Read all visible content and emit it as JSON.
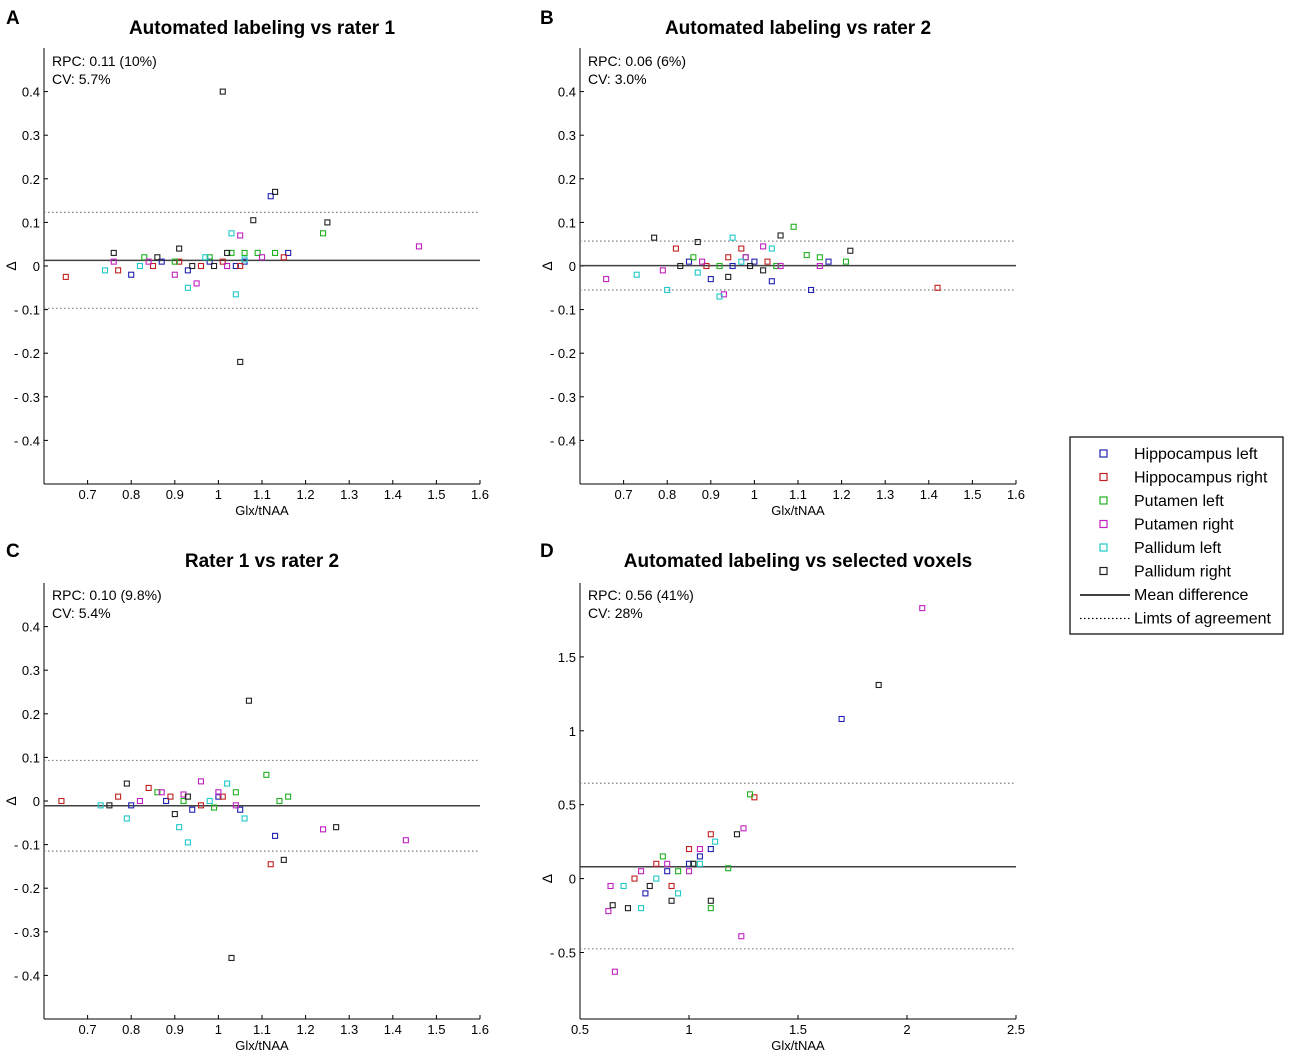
{
  "colors": {
    "hippocampus_left": "#2020b0",
    "hippocampus_right": "#c02020",
    "putamen_left": "#20b020",
    "putamen_right": "#c020c0",
    "pallidum_left": "#20c8c8",
    "pallidum_right": "#202020",
    "mean_line": "#404040",
    "limit_line": "#808080"
  },
  "legend": {
    "items": [
      {
        "label": "Hippocampus left",
        "group": "hippocampus_left",
        "kind": "marker"
      },
      {
        "label": "Hippocampus right",
        "group": "hippocampus_right",
        "kind": "marker"
      },
      {
        "label": "Putamen left",
        "group": "putamen_left",
        "kind": "marker"
      },
      {
        "label": "Putamen right",
        "group": "putamen_right",
        "kind": "marker"
      },
      {
        "label": "Pallidum left",
        "group": "pallidum_left",
        "kind": "marker"
      },
      {
        "label": "Pallidum right",
        "group": "pallidum_right",
        "kind": "marker"
      },
      {
        "label": "Mean difference",
        "group": "mean_line",
        "kind": "solid"
      },
      {
        "label": "Limts of agreement",
        "group": "limit_line",
        "kind": "dotted"
      }
    ]
  },
  "chart_data": [
    {
      "panel_label": "A",
      "type": "scatter",
      "title": "Automated labeling vs rater 1",
      "xlabel": "Glx/tNAA",
      "ylabel": "Δ",
      "annotation": [
        "RPC: 0.11 (10%)",
        "CV: 5.7%"
      ],
      "xlim": [
        0.6,
        1.6
      ],
      "ylim": [
        -0.5,
        0.5
      ],
      "xticks": [
        0.7,
        0.8,
        0.9,
        1,
        1.1,
        1.2,
        1.3,
        1.4,
        1.5,
        1.6
      ],
      "xtick_labels": [
        "0.7",
        "0.8",
        "0.9",
        "1",
        "1.1",
        "1.2",
        "1.3",
        "1.4",
        "1.5",
        "1.6"
      ],
      "yticks": [
        0.4,
        0.3,
        0.2,
        0.1,
        0,
        -0.1,
        -0.2,
        -0.3,
        -0.4
      ],
      "ytick_labels": [
        "0.4",
        "0.3",
        "0.2",
        "0.1",
        "0",
        "- 0.1",
        "- 0.2",
        "- 0.3",
        "- 0.4"
      ],
      "mean_difference": 0.013,
      "limits_of_agreement": [
        -0.097,
        0.123
      ],
      "series": [
        {
          "name": "Hippocampus left",
          "group": "hippocampus_left",
          "x": [
            0.8,
            0.87,
            0.93,
            0.98,
            1.04,
            1.06,
            1.12,
            1.16
          ],
          "y": [
            -0.02,
            0.01,
            -0.01,
            0.01,
            0.0,
            0.01,
            0.16,
            0.03
          ]
        },
        {
          "name": "Hippocampus right",
          "group": "hippocampus_right",
          "x": [
            0.65,
            0.77,
            0.85,
            0.91,
            0.96,
            1.01,
            1.05,
            1.15
          ],
          "y": [
            -0.025,
            -0.01,
            0.0,
            0.01,
            0.0,
            0.01,
            0.0,
            0.02
          ]
        },
        {
          "name": "Putamen left",
          "group": "putamen_left",
          "x": [
            0.83,
            0.9,
            0.98,
            1.03,
            1.06,
            1.09,
            1.13,
            1.24
          ],
          "y": [
            0.02,
            0.01,
            0.02,
            0.03,
            0.03,
            0.03,
            0.03,
            0.075
          ]
        },
        {
          "name": "Putamen right",
          "group": "putamen_right",
          "x": [
            0.76,
            0.84,
            0.9,
            0.95,
            1.02,
            1.05,
            1.1,
            1.46
          ],
          "y": [
            0.01,
            0.01,
            -0.02,
            -0.04,
            0.0,
            0.07,
            0.02,
            0.045
          ]
        },
        {
          "name": "Pallidum left",
          "group": "pallidum_left",
          "x": [
            0.74,
            0.82,
            0.93,
            0.97,
            1.03,
            1.04,
            1.06
          ],
          "y": [
            -0.01,
            0.0,
            -0.05,
            0.02,
            0.075,
            -0.065,
            0.015
          ]
        },
        {
          "name": "Pallidum right",
          "group": "pallidum_right",
          "x": [
            0.76,
            0.86,
            0.91,
            0.94,
            0.99,
            1.01,
            1.02,
            1.05,
            1.08,
            1.13,
            1.25
          ],
          "y": [
            0.03,
            0.02,
            0.04,
            0.0,
            0.0,
            0.4,
            0.03,
            -0.22,
            0.105,
            0.17,
            0.1
          ]
        }
      ]
    },
    {
      "panel_label": "B",
      "type": "scatter",
      "title": "Automated labeling vs rater 2",
      "xlabel": "Glx/tNAA",
      "ylabel": "Δ",
      "annotation": [
        "RPC: 0.06 (6%)",
        "CV: 3.0%"
      ],
      "xlim": [
        0.6,
        1.6
      ],
      "ylim": [
        -0.5,
        0.5
      ],
      "xticks": [
        0.7,
        0.8,
        0.9,
        1,
        1.1,
        1.2,
        1.3,
        1.4,
        1.5,
        1.6
      ],
      "xtick_labels": [
        "0.7",
        "0.8",
        "0.9",
        "1",
        "1.1",
        "1.2",
        "1.3",
        "1.4",
        "1.5",
        "1.6"
      ],
      "yticks": [
        0.4,
        0.3,
        0.2,
        0.1,
        0,
        -0.1,
        -0.2,
        -0.3,
        -0.4
      ],
      "ytick_labels": [
        "0.4",
        "0.3",
        "0.2",
        "0.1",
        "0",
        "- 0.1",
        "- 0.2",
        "- 0.3",
        "- 0.4"
      ],
      "mean_difference": 0.001,
      "limits_of_agreement": [
        -0.055,
        0.057
      ],
      "series": [
        {
          "name": "Hippocampus left",
          "group": "hippocampus_left",
          "x": [
            0.85,
            0.9,
            0.95,
            1.0,
            1.04,
            1.13,
            1.17
          ],
          "y": [
            0.01,
            -0.03,
            0.0,
            0.01,
            -0.035,
            -0.055,
            0.01
          ]
        },
        {
          "name": "Hippocampus right",
          "group": "hippocampus_right",
          "x": [
            0.82,
            0.89,
            0.94,
            0.97,
            1.03,
            1.42
          ],
          "y": [
            0.04,
            0.0,
            0.02,
            0.04,
            0.01,
            -0.05
          ]
        },
        {
          "name": "Putamen left",
          "group": "putamen_left",
          "x": [
            0.86,
            0.92,
            0.98,
            1.05,
            1.09,
            1.12,
            1.15,
            1.21
          ],
          "y": [
            0.02,
            0.0,
            0.02,
            0.0,
            0.09,
            0.025,
            0.02,
            0.01
          ]
        },
        {
          "name": "Putamen right",
          "group": "putamen_right",
          "x": [
            0.66,
            0.79,
            0.88,
            0.93,
            0.98,
            1.02,
            1.06,
            1.15
          ],
          "y": [
            -0.03,
            -0.01,
            0.01,
            -0.065,
            0.02,
            0.045,
            0.0,
            0.0
          ]
        },
        {
          "name": "Pallidum left",
          "group": "pallidum_left",
          "x": [
            0.73,
            0.8,
            0.87,
            0.92,
            0.95,
            0.97,
            1.04
          ],
          "y": [
            -0.02,
            -0.055,
            -0.015,
            -0.07,
            0.065,
            0.01,
            0.04
          ]
        },
        {
          "name": "Pallidum right",
          "group": "pallidum_right",
          "x": [
            0.77,
            0.83,
            0.87,
            0.94,
            0.99,
            1.02,
            1.06,
            1.22
          ],
          "y": [
            0.065,
            0.0,
            0.055,
            -0.025,
            0.0,
            -0.01,
            0.07,
            0.035
          ]
        }
      ]
    },
    {
      "panel_label": "C",
      "type": "scatter",
      "title": "Rater 1 vs rater 2",
      "xlabel": "Glx/tNAA",
      "ylabel": "Δ",
      "annotation": [
        "RPC: 0.10 (9.8%)",
        "CV: 5.4%"
      ],
      "xlim": [
        0.6,
        1.6
      ],
      "ylim": [
        -0.5,
        0.5
      ],
      "xticks": [
        0.7,
        0.8,
        0.9,
        1,
        1.1,
        1.2,
        1.3,
        1.4,
        1.5,
        1.6
      ],
      "xtick_labels": [
        "0.7",
        "0.8",
        "0.9",
        "1",
        "1.1",
        "1.2",
        "1.3",
        "1.4",
        "1.5",
        "1.6"
      ],
      "yticks": [
        0.4,
        0.3,
        0.2,
        0.1,
        0,
        -0.1,
        -0.2,
        -0.3,
        -0.4
      ],
      "ytick_labels": [
        "0.4",
        "0.3",
        "0.2",
        "0.1",
        "0",
        "- 0.1",
        "- 0.2",
        "- 0.3",
        "- 0.4"
      ],
      "mean_difference": -0.011,
      "limits_of_agreement": [
        -0.115,
        0.093
      ],
      "series": [
        {
          "name": "Hippocampus left",
          "group": "hippocampus_left",
          "x": [
            0.8,
            0.88,
            0.94,
            1.0,
            1.05,
            1.13
          ],
          "y": [
            -0.01,
            0.0,
            -0.02,
            0.01,
            -0.02,
            -0.08
          ]
        },
        {
          "name": "Hippocampus right",
          "group": "hippocampus_right",
          "x": [
            0.64,
            0.77,
            0.84,
            0.89,
            0.96,
            1.01,
            1.12
          ],
          "y": [
            0.0,
            0.01,
            0.03,
            0.01,
            -0.01,
            0.01,
            -0.145
          ]
        },
        {
          "name": "Putamen left",
          "group": "putamen_left",
          "x": [
            0.86,
            0.92,
            0.99,
            1.04,
            1.11,
            1.14,
            1.16
          ],
          "y": [
            0.02,
            0.0,
            -0.015,
            0.02,
            0.06,
            0.0,
            0.01
          ]
        },
        {
          "name": "Putamen right",
          "group": "putamen_right",
          "x": [
            0.82,
            0.87,
            0.92,
            0.96,
            1.0,
            1.04,
            1.24,
            1.43
          ],
          "y": [
            0.0,
            0.02,
            0.015,
            0.045,
            0.02,
            -0.01,
            -0.065,
            -0.09
          ]
        },
        {
          "name": "Pallidum left",
          "group": "pallidum_left",
          "x": [
            0.73,
            0.79,
            0.91,
            0.93,
            0.98,
            1.02,
            1.06
          ],
          "y": [
            -0.01,
            -0.04,
            -0.06,
            -0.095,
            0.0,
            0.04,
            -0.04
          ]
        },
        {
          "name": "Pallidum right",
          "group": "pallidum_right",
          "x": [
            0.75,
            0.79,
            0.9,
            0.93,
            1.03,
            1.07,
            1.15,
            1.27
          ],
          "y": [
            -0.01,
            0.04,
            -0.03,
            0.01,
            -0.36,
            0.23,
            -0.135,
            -0.06
          ]
        }
      ]
    },
    {
      "panel_label": "D",
      "type": "scatter",
      "title": "Automated labeling vs selected voxels",
      "xlabel": "Glx/tNAA",
      "ylabel": "Δ",
      "annotation": [
        "RPC: 0.56 (41%)",
        "CV: 28%"
      ],
      "xlim": [
        0.5,
        2.5
      ],
      "ylim": [
        -0.95,
        2.0
      ],
      "xticks": [
        0.5,
        1,
        1.5,
        2,
        2.5
      ],
      "xtick_labels": [
        "0.5",
        "1",
        "1.5",
        "2",
        "2.5"
      ],
      "yticks": [
        1.5,
        1,
        0.5,
        0,
        -0.5
      ],
      "ytick_labels": [
        "1.5",
        "1",
        "0.5",
        "0",
        "- 0.5"
      ],
      "mean_difference": 0.08,
      "limits_of_agreement": [
        -0.475,
        0.645
      ],
      "series": [
        {
          "name": "Hippocampus left",
          "group": "hippocampus_left",
          "x": [
            0.8,
            0.9,
            1.0,
            1.05,
            1.1,
            1.7
          ],
          "y": [
            -0.1,
            0.05,
            0.1,
            0.15,
            0.2,
            1.08
          ]
        },
        {
          "name": "Hippocampus right",
          "group": "hippocampus_right",
          "x": [
            0.75,
            0.85,
            0.92,
            1.0,
            1.1,
            1.3
          ],
          "y": [
            0.0,
            0.1,
            -0.05,
            0.2,
            0.3,
            0.55
          ]
        },
        {
          "name": "Putamen left",
          "group": "putamen_left",
          "x": [
            0.88,
            0.95,
            1.02,
            1.1,
            1.18,
            1.28
          ],
          "y": [
            0.15,
            0.05,
            0.1,
            -0.2,
            0.07,
            0.57
          ]
        },
        {
          "name": "Putamen right",
          "group": "putamen_right",
          "x": [
            0.63,
            0.64,
            0.66,
            0.78,
            0.9,
            1.0,
            1.05,
            1.25,
            1.24,
            2.07
          ],
          "y": [
            -0.22,
            -0.05,
            -0.63,
            0.05,
            0.1,
            0.05,
            0.2,
            0.34,
            -0.39,
            1.83
          ]
        },
        {
          "name": "Pallidum left",
          "group": "pallidum_left",
          "x": [
            0.7,
            0.78,
            0.85,
            0.95,
            1.05,
            1.12
          ],
          "y": [
            -0.05,
            -0.2,
            0.0,
            -0.1,
            0.1,
            0.25
          ]
        },
        {
          "name": "Pallidum right",
          "group": "pallidum_right",
          "x": [
            0.65,
            0.72,
            0.82,
            0.92,
            1.02,
            1.1,
            1.22,
            1.87
          ],
          "y": [
            -0.18,
            -0.2,
            -0.05,
            -0.15,
            0.1,
            -0.15,
            0.3,
            1.31
          ]
        }
      ]
    }
  ]
}
